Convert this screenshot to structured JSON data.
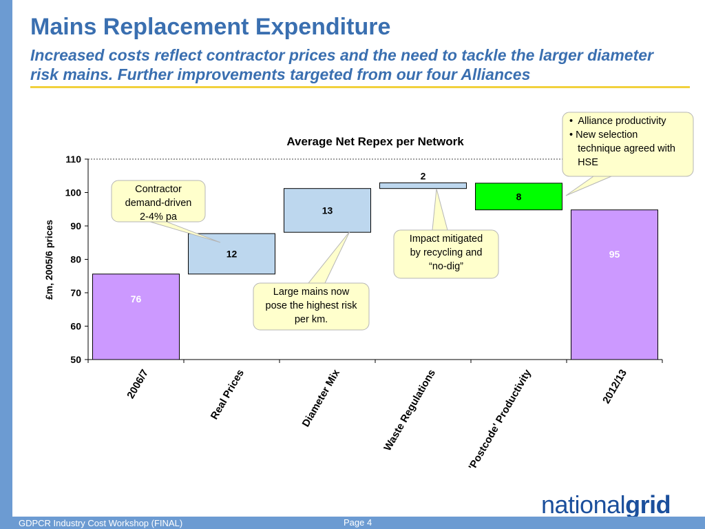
{
  "slide": {
    "title": "Mains Replacement Expenditure",
    "subtitle": "Increased costs reflect contractor prices and the need to tackle the larger diameter risk mains.  Further improvements targeted from our four Alliances",
    "footer_left": "GDPCR Industry Cost Workshop (FINAL)",
    "footer_page": "Page 4",
    "logo_light": "national",
    "logo_bold": "grid"
  },
  "colors": {
    "accent": "#3a6fb0",
    "side_bar": "#6c9bd2",
    "rule": "#f2d13c",
    "total_bar": "#cc99ff",
    "step_bar": "#bdd7ee",
    "saving_bar": "#00ff00",
    "callout_fill": "#ffffcc"
  },
  "chart_data": {
    "type": "bar",
    "subtype": "waterfall",
    "title": "Average Net Repex per Network",
    "xlabel": "",
    "ylabel": "£m, 2005/6 prices",
    "ylim": [
      50,
      110
    ],
    "yticks": [
      50,
      60,
      70,
      80,
      90,
      100,
      110
    ],
    "grid": false,
    "categories": [
      "2006/7",
      "Real Prices",
      "Diameter Mix",
      "Waste Regulations",
      "'Postcode' Productivity",
      "2012/13"
    ],
    "bars": [
      {
        "label": "76",
        "base": 50,
        "top": 75.6,
        "kind": "total"
      },
      {
        "label": "12",
        "base": 75.6,
        "top": 87.7,
        "kind": "increase"
      },
      {
        "label": "13",
        "base": 88.1,
        "top": 101.2,
        "kind": "increase"
      },
      {
        "label": "2",
        "base": 101.2,
        "top": 102.9,
        "kind": "increase"
      },
      {
        "label": "8",
        "base": 94.8,
        "top": 102.8,
        "kind": "decrease"
      },
      {
        "label": "95",
        "base": 50,
        "top": 94.8,
        "kind": "total"
      }
    ],
    "annotations": [
      {
        "lines": [
          "Contractor",
          "demand-driven",
          "2-4% pa"
        ],
        "points_to": "Real Prices"
      },
      {
        "lines": [
          "Large mains now",
          "pose the highest risk",
          "per km."
        ],
        "points_to": "Diameter Mix"
      },
      {
        "lines": [
          "Impact mitigated",
          "by recycling and",
          "“no-dig”"
        ],
        "points_to": "Waste Regulations"
      },
      {
        "lines": [
          "•  Alliance productivity",
          "• New selection",
          "   technique agreed with",
          "   HSE"
        ],
        "points_to": "'Postcode' Productivity"
      }
    ]
  }
}
